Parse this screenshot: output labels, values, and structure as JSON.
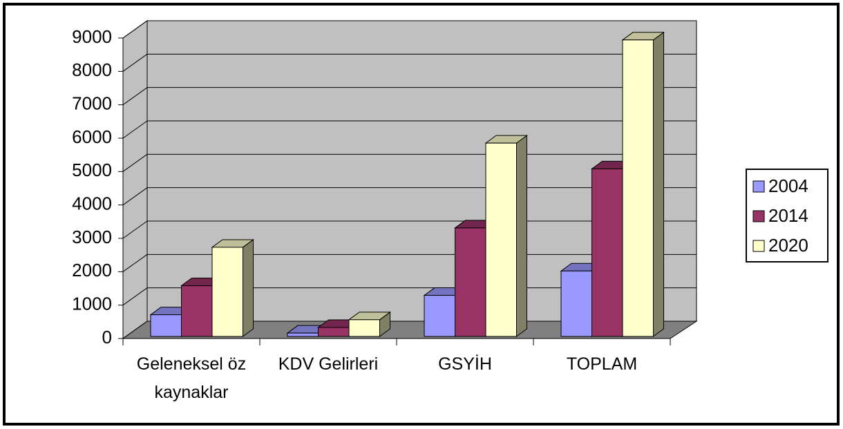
{
  "chart_data": {
    "type": "bar3d",
    "categories": [
      "Geleneksel öz kaynaklar",
      "KDV Gelirleri",
      "GSYİH",
      "TOPLAM"
    ],
    "series": [
      {
        "name": "2004",
        "color": "#9999ff",
        "values": [
          650,
          100,
          1230,
          1960
        ]
      },
      {
        "name": "2014",
        "color": "#993366",
        "values": [
          1520,
          270,
          3250,
          5020
        ]
      },
      {
        "name": "2020",
        "color": "#ffffcc",
        "values": [
          2670,
          500,
          5790,
          8880
        ]
      }
    ],
    "ylim": [
      0,
      9000
    ],
    "yticks": [
      0,
      1000,
      2000,
      3000,
      4000,
      5000,
      6000,
      7000,
      8000,
      9000
    ],
    "grid": true,
    "legend": "right"
  }
}
